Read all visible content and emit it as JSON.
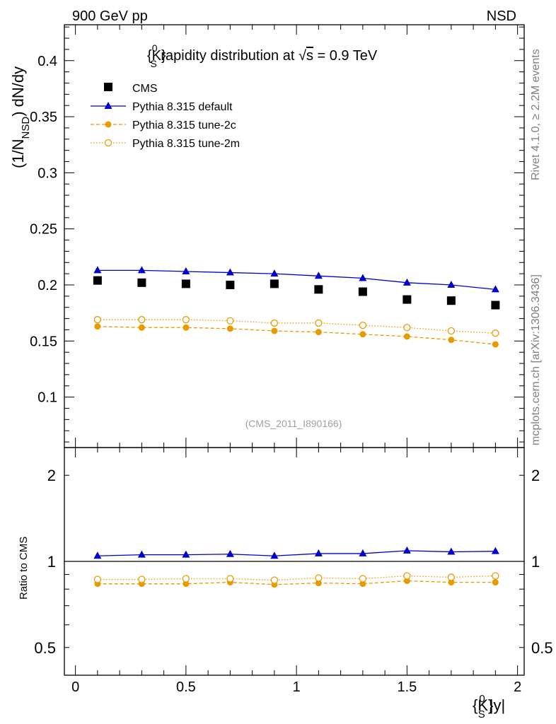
{
  "header": {
    "left": "900 GeV pp",
    "right": "NSD"
  },
  "side": {
    "rivet": "Rivet 4.1.0, ≥ 2.2M events",
    "mcplots": "mcplots.cern.ch [arXiv:1306.3436]"
  },
  "colors": {
    "cms": "#000000",
    "default": "#0000cc",
    "tune": "#e69b00"
  },
  "chart_data": [
    {
      "type": "line",
      "title_parts": {
        "k": "{K}",
        "sup": "0",
        "sub": "S",
        "rest": " rapidity distribution at ",
        "sqrt": "√",
        "s": "s",
        "energy": " = 0.9 TeV"
      },
      "ylabel_parts": {
        "pre": "(1/N",
        "sub": "NSD",
        "post": ") dN/dy"
      },
      "analysis_id": "(CMS_2011_I890166)",
      "ylim": [
        0.055,
        0.432
      ],
      "xlim": [
        -0.05,
        2.03
      ],
      "yticks": [
        0.1,
        0.15,
        0.2,
        0.25,
        0.3,
        0.35,
        0.4
      ],
      "ytick_labels": [
        "0.1",
        "0.15",
        "0.2",
        "0.25",
        "0.3",
        "0.35",
        "0.4"
      ],
      "legend_position": "top-left",
      "x": [
        0.1,
        0.3,
        0.5,
        0.7,
        0.9,
        1.1,
        1.3,
        1.5,
        1.7,
        1.9
      ],
      "series": [
        {
          "name": "CMS",
          "style": "marker",
          "values": [
            0.204,
            0.202,
            0.201,
            0.2,
            0.201,
            0.196,
            0.194,
            0.187,
            0.186,
            0.182
          ]
        },
        {
          "name": "Pythia 8.315 default",
          "style": "solid",
          "values": [
            0.213,
            0.213,
            0.212,
            0.211,
            0.21,
            0.208,
            0.206,
            0.202,
            0.2,
            0.196
          ]
        },
        {
          "name": "Pythia 8.315 tune-2c",
          "style": "dashed",
          "values": [
            0.163,
            0.162,
            0.162,
            0.161,
            0.159,
            0.158,
            0.156,
            0.154,
            0.151,
            0.147
          ]
        },
        {
          "name": "Pythia 8.315 tune-2m",
          "style": "dotted",
          "values": [
            0.169,
            0.169,
            0.169,
            0.168,
            0.166,
            0.166,
            0.164,
            0.162,
            0.159,
            0.157
          ]
        }
      ]
    },
    {
      "type": "line",
      "ylabel": "Ratio to CMS",
      "ylim": [
        0.4,
        2.5
      ],
      "ylog": true,
      "yticks": [
        0.5,
        1,
        2
      ],
      "ytick_labels": [
        "0.5",
        "1",
        "2"
      ],
      "xlim": [
        -0.05,
        2.03
      ],
      "xticks": [
        0,
        0.5,
        1,
        1.5,
        2
      ],
      "xtick_labels": [
        "0",
        "0.5",
        "1",
        "1.5",
        "2"
      ],
      "xlabel_parts": {
        "k": "{K}",
        "sup": "0",
        "sub": "S",
        "rest": " |y|"
      },
      "x": [
        0.1,
        0.3,
        0.5,
        0.7,
        0.9,
        1.1,
        1.3,
        1.5,
        1.7,
        1.9
      ],
      "series": [
        {
          "name": "Pythia 8.315 default",
          "style": "solid",
          "values": [
            1.045,
            1.055,
            1.055,
            1.06,
            1.045,
            1.065,
            1.065,
            1.09,
            1.08,
            1.085
          ]
        },
        {
          "name": "Pythia 8.315 tune-2c",
          "style": "dashed",
          "values": [
            0.835,
            0.835,
            0.835,
            0.845,
            0.83,
            0.84,
            0.835,
            0.855,
            0.845,
            0.845
          ]
        },
        {
          "name": "Pythia 8.315 tune-2m",
          "style": "dotted",
          "values": [
            0.865,
            0.865,
            0.87,
            0.87,
            0.86,
            0.875,
            0.87,
            0.89,
            0.88,
            0.89
          ]
        }
      ]
    }
  ]
}
